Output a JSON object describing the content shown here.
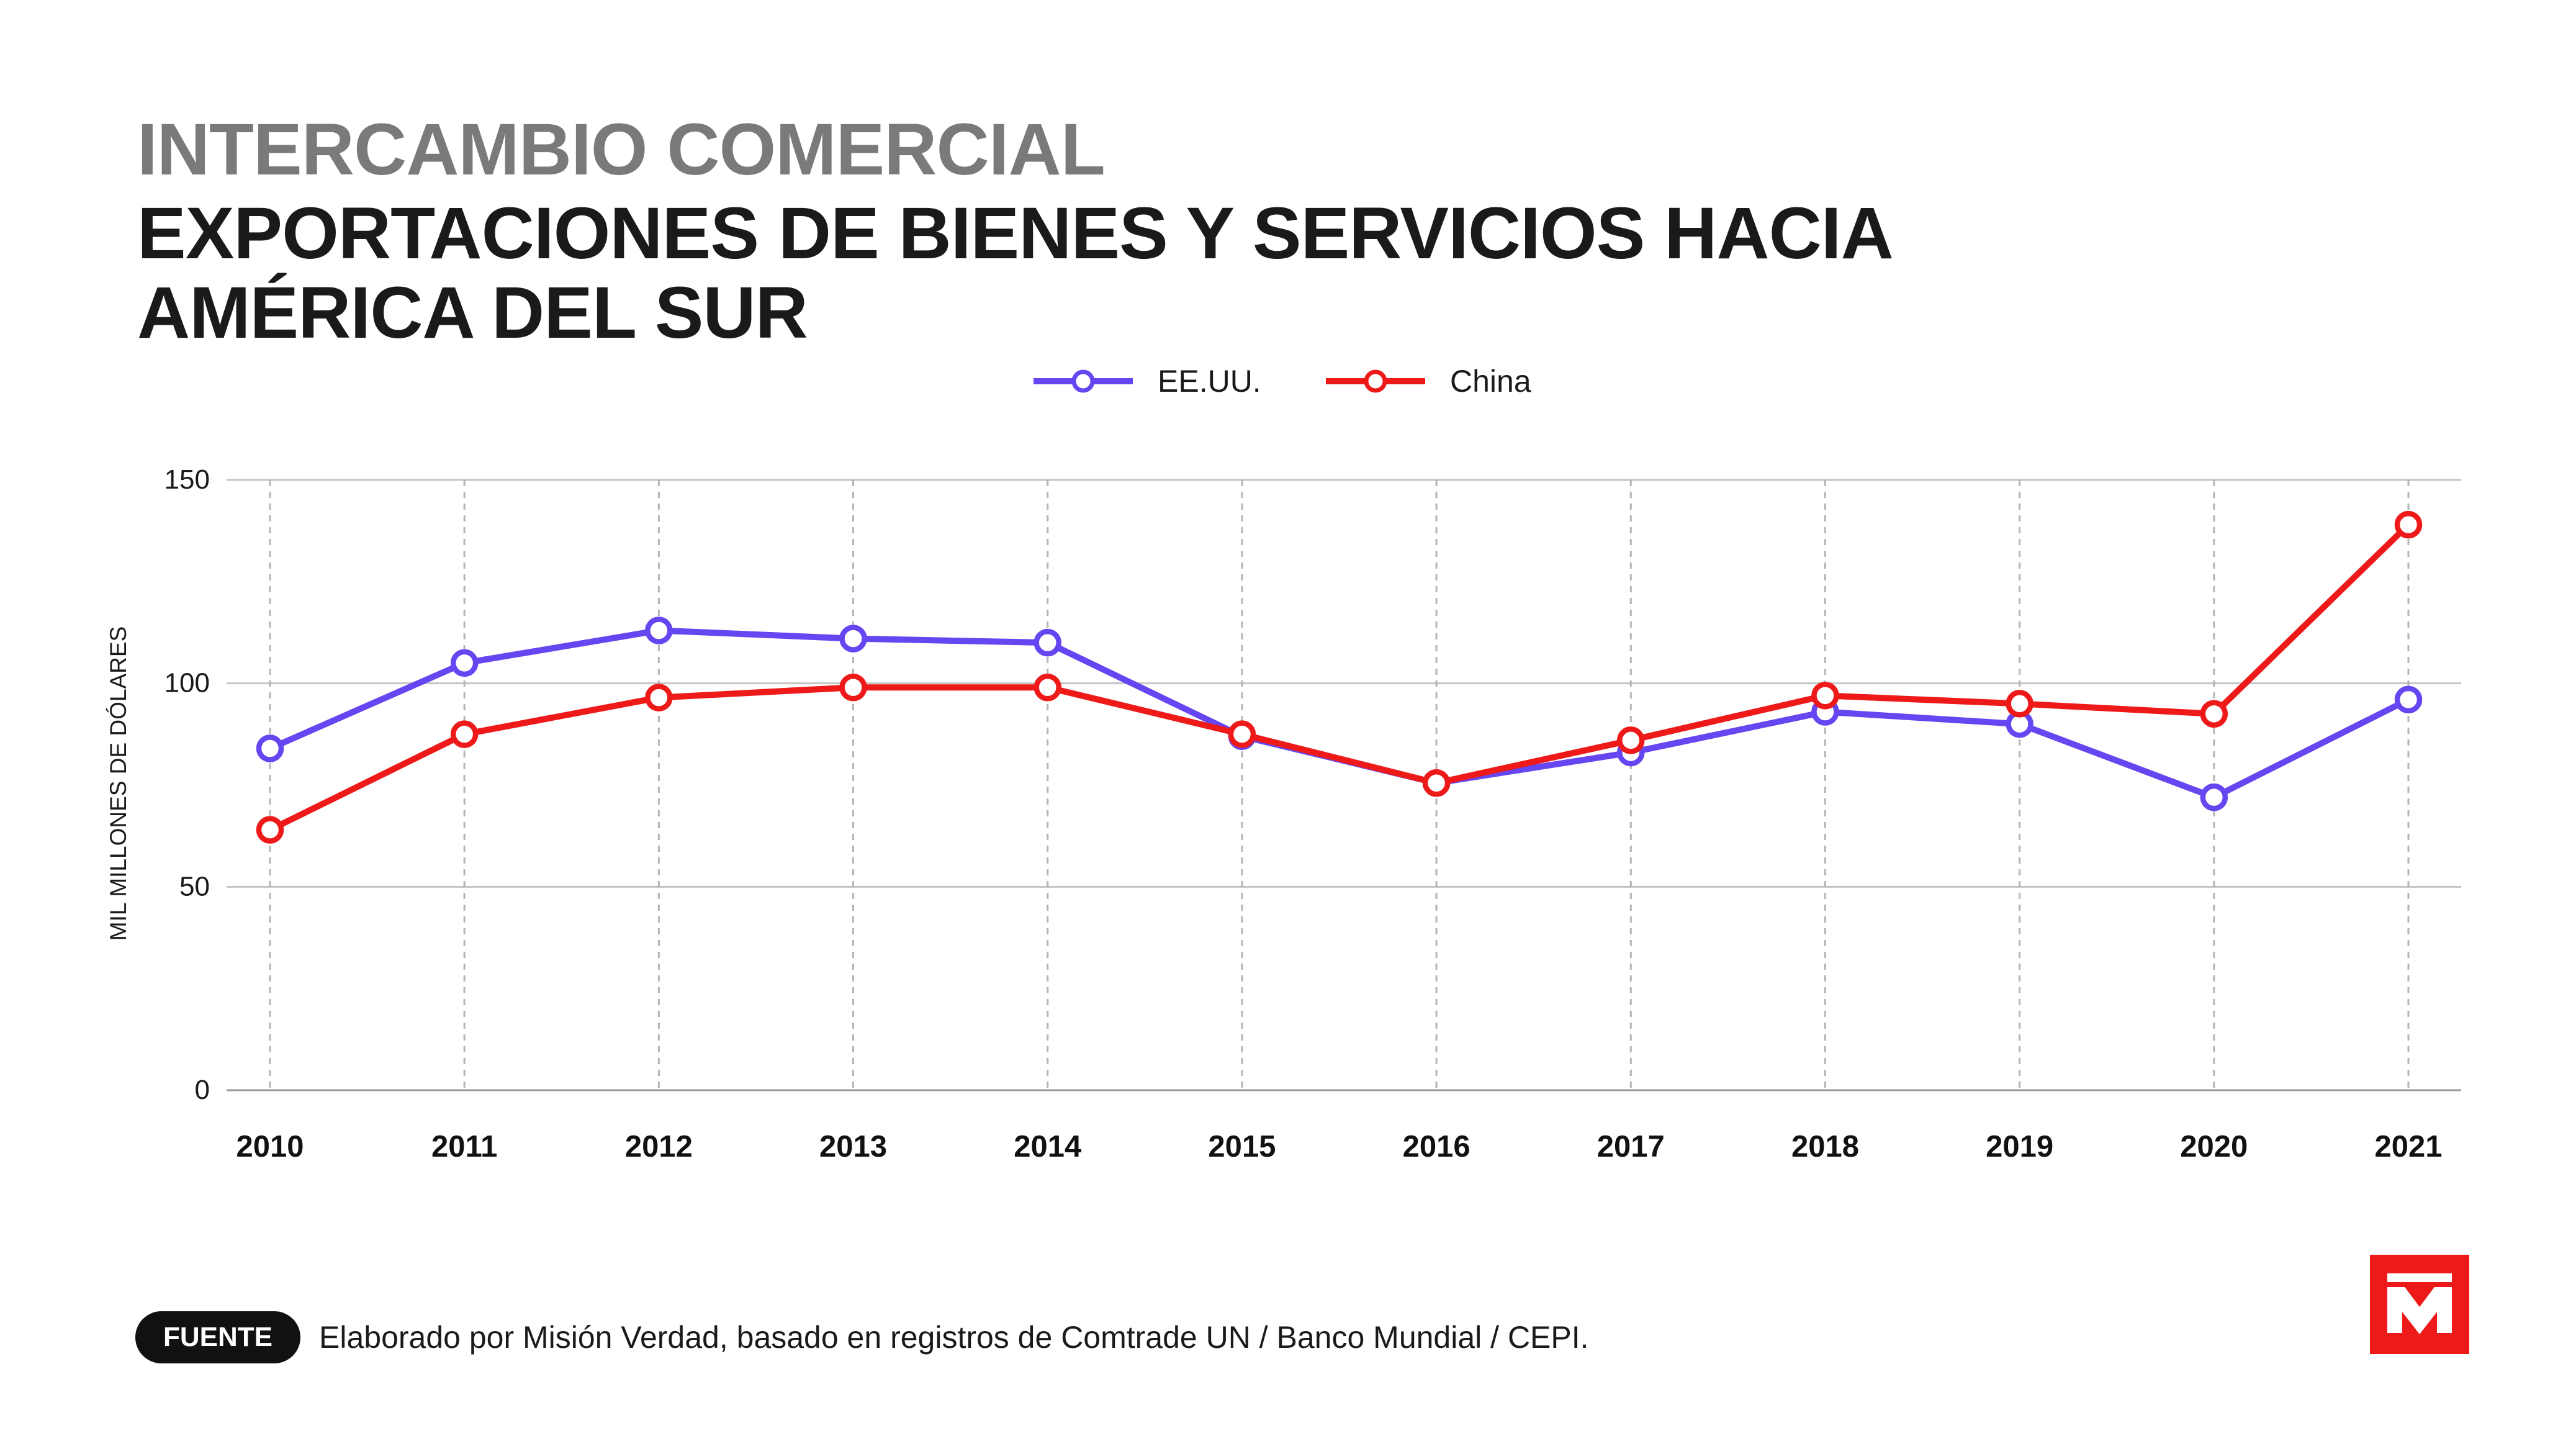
{
  "header": {
    "kicker": "INTERCAMBIO COMERCIAL",
    "title": "EXPORTACIONES DE BIENES Y SERVICIOS HACIA AMÉRICA DEL SUR"
  },
  "footer": {
    "source_label": "FUENTE",
    "source_text": "Elaborado por Misión Verdad, basado en registros de Comtrade UN / Banco Mundial / CEPI."
  },
  "logo": {
    "icon": "mision-verdad-logo-icon",
    "color": "#ee1a1a"
  },
  "chart_data": {
    "type": "line",
    "title": "EXPORTACIONES DE BIENES Y SERVICIOS HACIA AMÉRICA DEL SUR",
    "xlabel": "",
    "ylabel": "MIL MILLONES DE DÓLARES",
    "ylim": [
      0,
      150
    ],
    "yticks": [
      0,
      50,
      100,
      150
    ],
    "grid": true,
    "legend_position": "top-center",
    "categories": [
      "2010",
      "2011",
      "2012",
      "2013",
      "2014",
      "2015",
      "2016",
      "2017",
      "2018",
      "2019",
      "2020",
      "2021"
    ],
    "series": [
      {
        "name": "EE.UU.",
        "color": "#6546f0",
        "values": [
          84,
          105,
          113,
          111,
          110,
          87,
          75.5,
          83,
          93,
          90,
          72,
          96
        ]
      },
      {
        "name": "China",
        "color": "#ee1a1a",
        "values": [
          64,
          87.5,
          96.5,
          99,
          99,
          87.5,
          75.5,
          86,
          97,
          95,
          92.5,
          139
        ]
      }
    ]
  }
}
